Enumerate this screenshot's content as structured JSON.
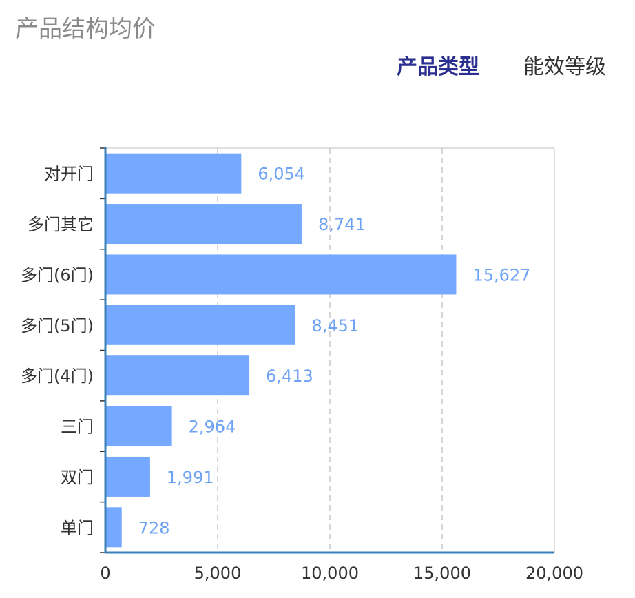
{
  "header": {
    "title": "产品结构均价",
    "tabs": [
      {
        "label": "产品类型",
        "active": true
      },
      {
        "label": "能效等级",
        "active": false
      }
    ]
  },
  "colors": {
    "bar": "#75a8ff",
    "value_label": "#6ea2f5",
    "axis": "#3a7fb8",
    "grid": "#c8c8c8",
    "active_tab": "#2b2f8f"
  },
  "chart_data": {
    "type": "bar",
    "orientation": "horizontal",
    "categories": [
      "对开门",
      "多门其它",
      "多门(6门)",
      "多门(5门)",
      "多门(4门)",
      "三门",
      "双门",
      "单门"
    ],
    "values": [
      6054,
      8741,
      15627,
      8451,
      6413,
      2964,
      1991,
      728
    ],
    "value_labels": [
      "6,054",
      "8,741",
      "15,627",
      "8,451",
      "6,413",
      "2,964",
      "1,991",
      "728"
    ],
    "xlim": [
      0,
      20000
    ],
    "x_ticks": [
      0,
      5000,
      10000,
      15000,
      20000
    ],
    "x_tick_labels": [
      "0",
      "5,000",
      "10,000",
      "15,000",
      "20,000"
    ],
    "grid": "vertical-dashed",
    "legend": "none"
  }
}
